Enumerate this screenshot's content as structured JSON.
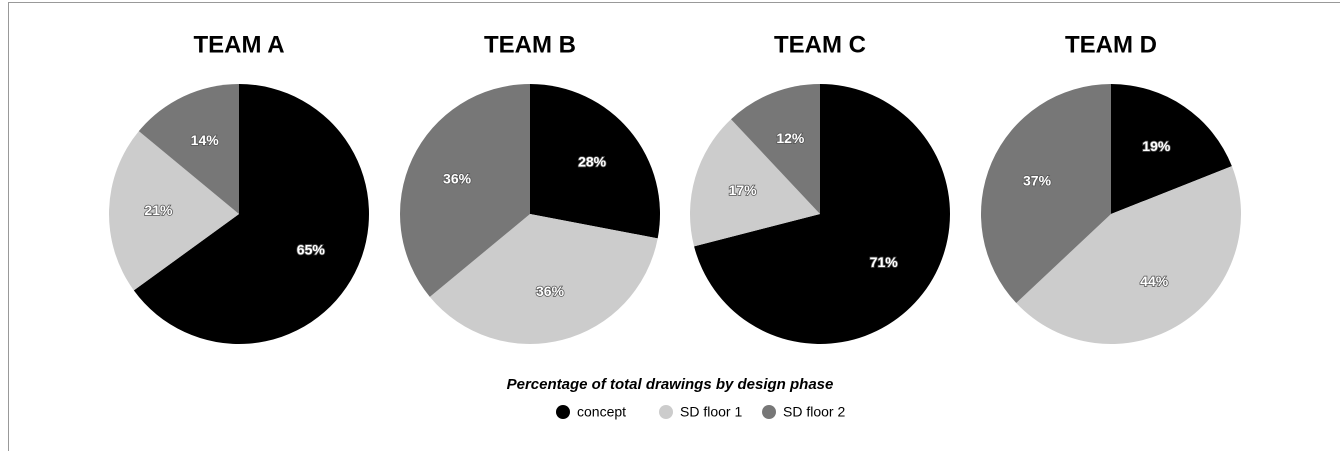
{
  "chart_data": [
    {
      "type": "pie",
      "title": "TEAM A",
      "categories": [
        "concept",
        "SD floor 1",
        "SD floor 2"
      ],
      "colors": [
        "#000000",
        "#cccccc",
        "#777777"
      ],
      "values": [
        65,
        21,
        14
      ],
      "value_labels": [
        "65%",
        "21%",
        "14%"
      ]
    },
    {
      "type": "pie",
      "title": "TEAM B",
      "categories": [
        "concept",
        "SD floor 1",
        "SD floor 2"
      ],
      "colors": [
        "#000000",
        "#cccccc",
        "#777777"
      ],
      "values": [
        28,
        36,
        36
      ],
      "value_labels": [
        "28%",
        "36%",
        "36%"
      ]
    },
    {
      "type": "pie",
      "title": "TEAM C",
      "categories": [
        "concept",
        "SD floor 1",
        "SD floor 2"
      ],
      "colors": [
        "#000000",
        "#cccccc",
        "#777777"
      ],
      "values": [
        71,
        17,
        12
      ],
      "value_labels": [
        "71%",
        "17%",
        "12%"
      ]
    },
    {
      "type": "pie",
      "title": "TEAM D",
      "categories": [
        "concept",
        "SD floor 1",
        "SD floor 2"
      ],
      "colors": [
        "#000000",
        "#cccccc",
        "#777777"
      ],
      "values": [
        19,
        44,
        37
      ],
      "value_labels": [
        "19%",
        "44%",
        "37%"
      ]
    }
  ],
  "caption": "Percentage of total drawings by design phase"
}
